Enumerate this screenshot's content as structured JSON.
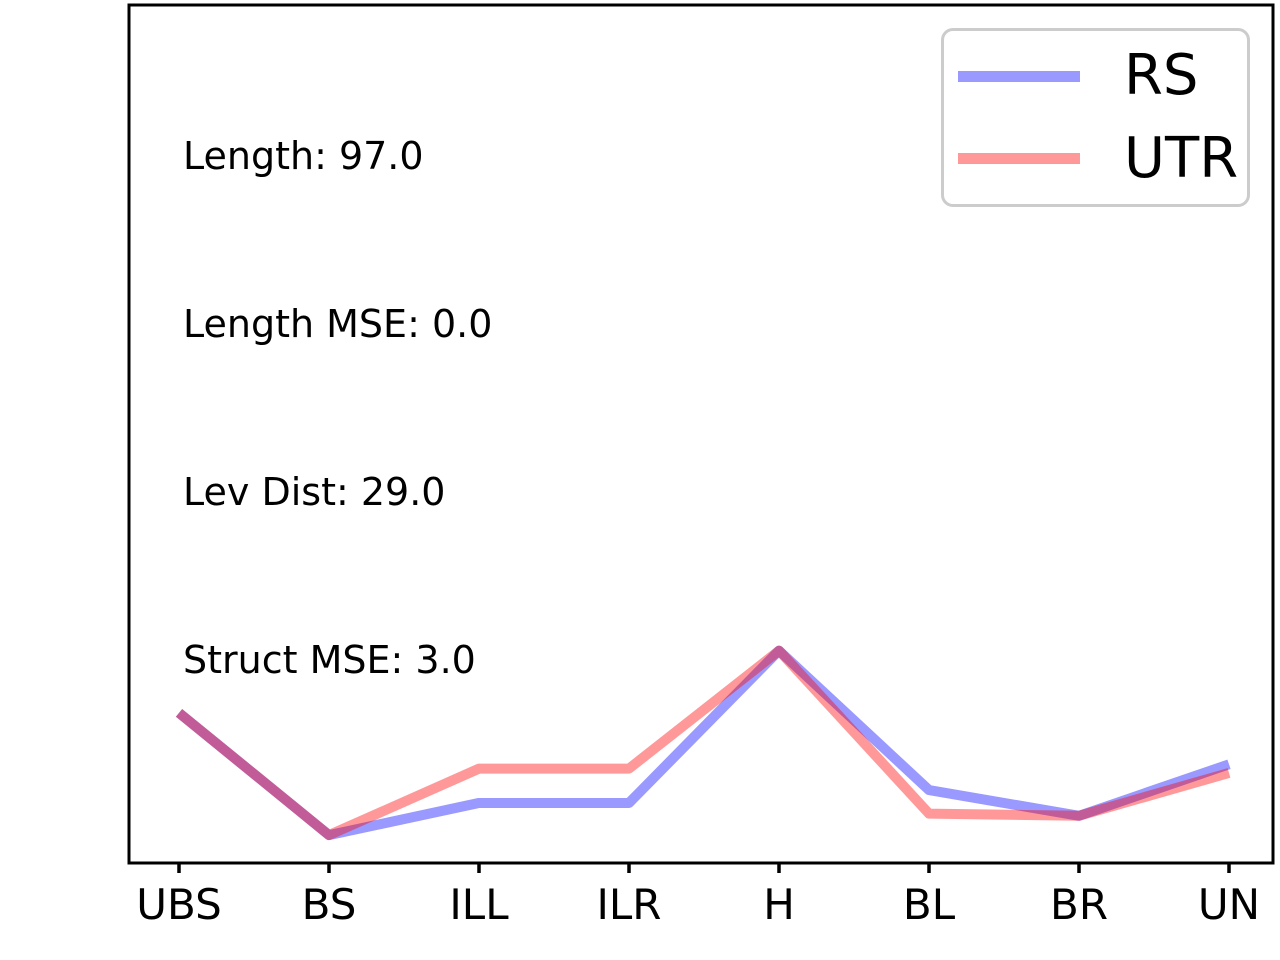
{
  "chart_data": {
    "type": "line",
    "title": "",
    "xlabel": "",
    "ylabel": "",
    "categories": [
      "UBS",
      "BS",
      "ILL",
      "ILR",
      "H",
      "BL",
      "BR",
      "UN"
    ],
    "series": [
      {
        "name": "RS",
        "color": "rgba(0,0,255,0.4)",
        "values": [
          7.0,
          1.3,
          2.8,
          2.8,
          9.9,
          3.4,
          2.2,
          4.6
        ]
      },
      {
        "name": "UTR",
        "color": "rgba(255,0,0,0.4)",
        "values": [
          7.0,
          1.3,
          4.4,
          4.4,
          9.9,
          2.3,
          2.2,
          4.2
        ]
      }
    ],
    "ylim": [
      0,
      40
    ],
    "grid": false,
    "legend_position": "upper right",
    "y_axis_ticks_visible": false,
    "annotations": [
      "Length: 97.0",
      "Length MSE: 0.0",
      "Lev Dist: 29.0",
      "Struct MSE: 3.0"
    ]
  },
  "colors": {
    "axis": "#000000",
    "text": "#000000",
    "legend_border": "#cccccc",
    "background": "#ffffff"
  }
}
